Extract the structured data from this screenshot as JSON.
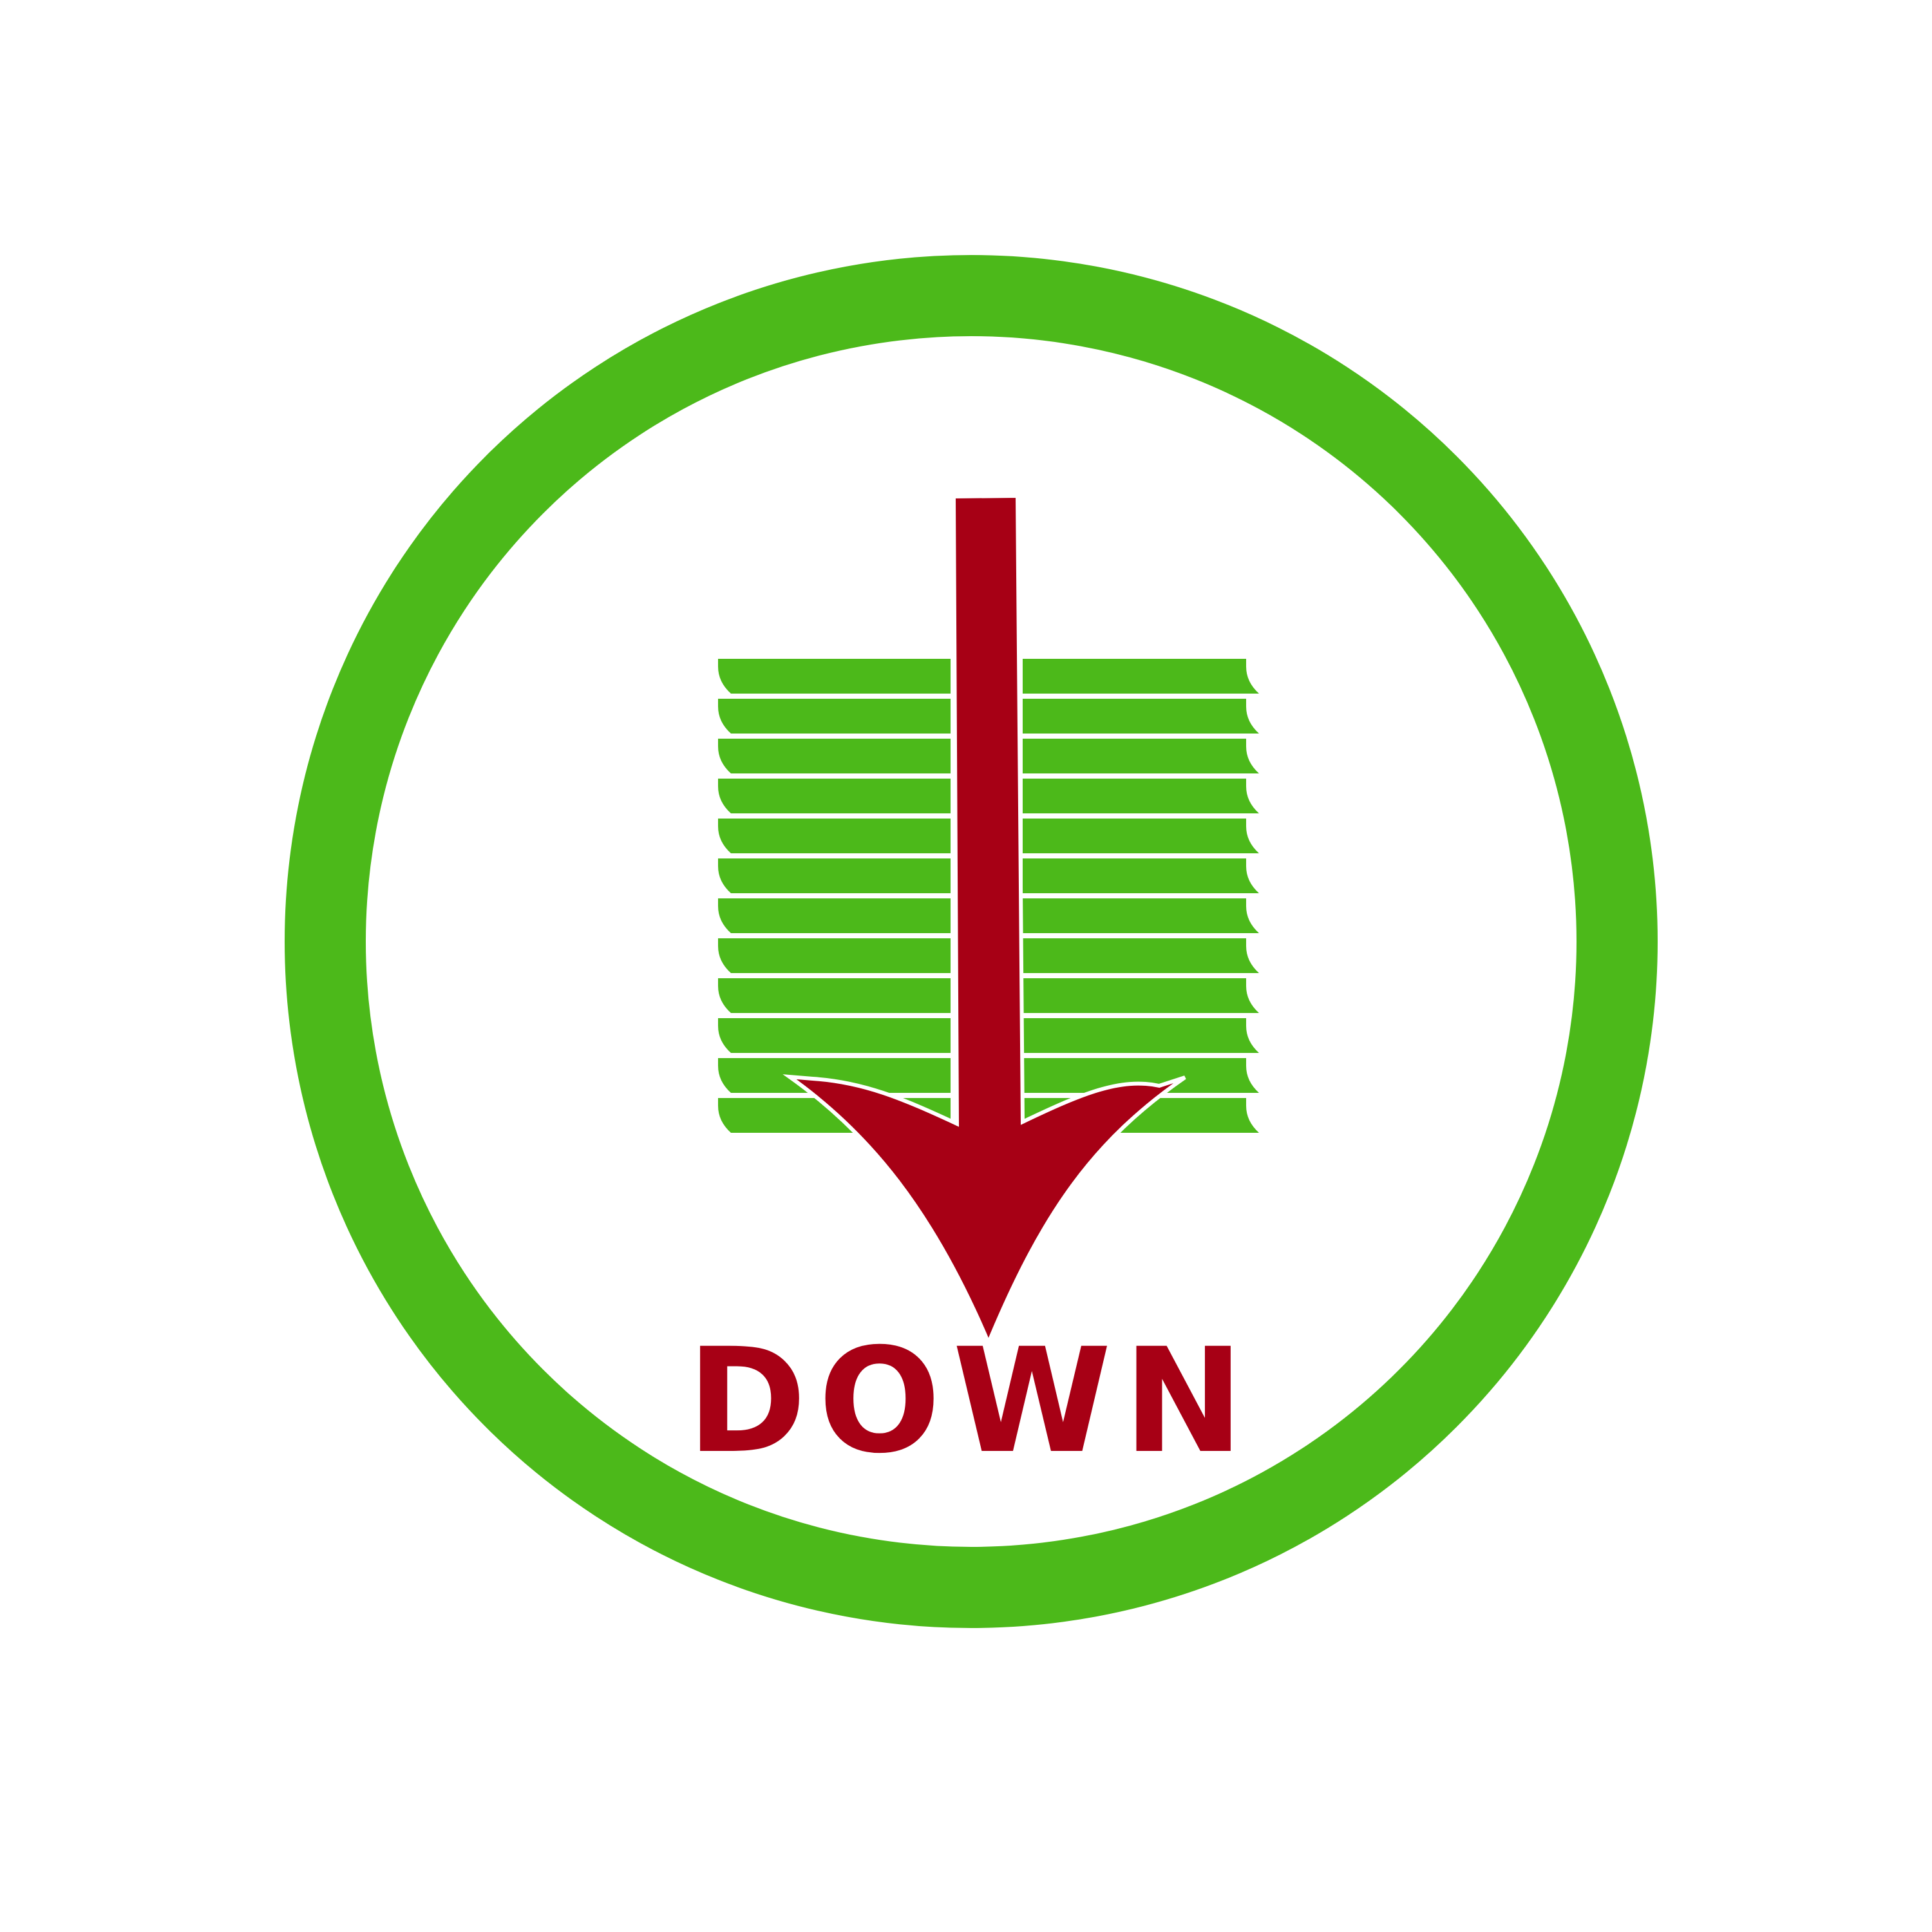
{
  "sign": {
    "label": "DOWN",
    "icon": "down-arrow-over-slats-icon"
  },
  "colors": {
    "background": "#ffffff",
    "ring": "#4cb91a",
    "slats": "#4cb91a",
    "arrow": "#a70015",
    "label": "#a70015",
    "outline": "#ffffff"
  }
}
